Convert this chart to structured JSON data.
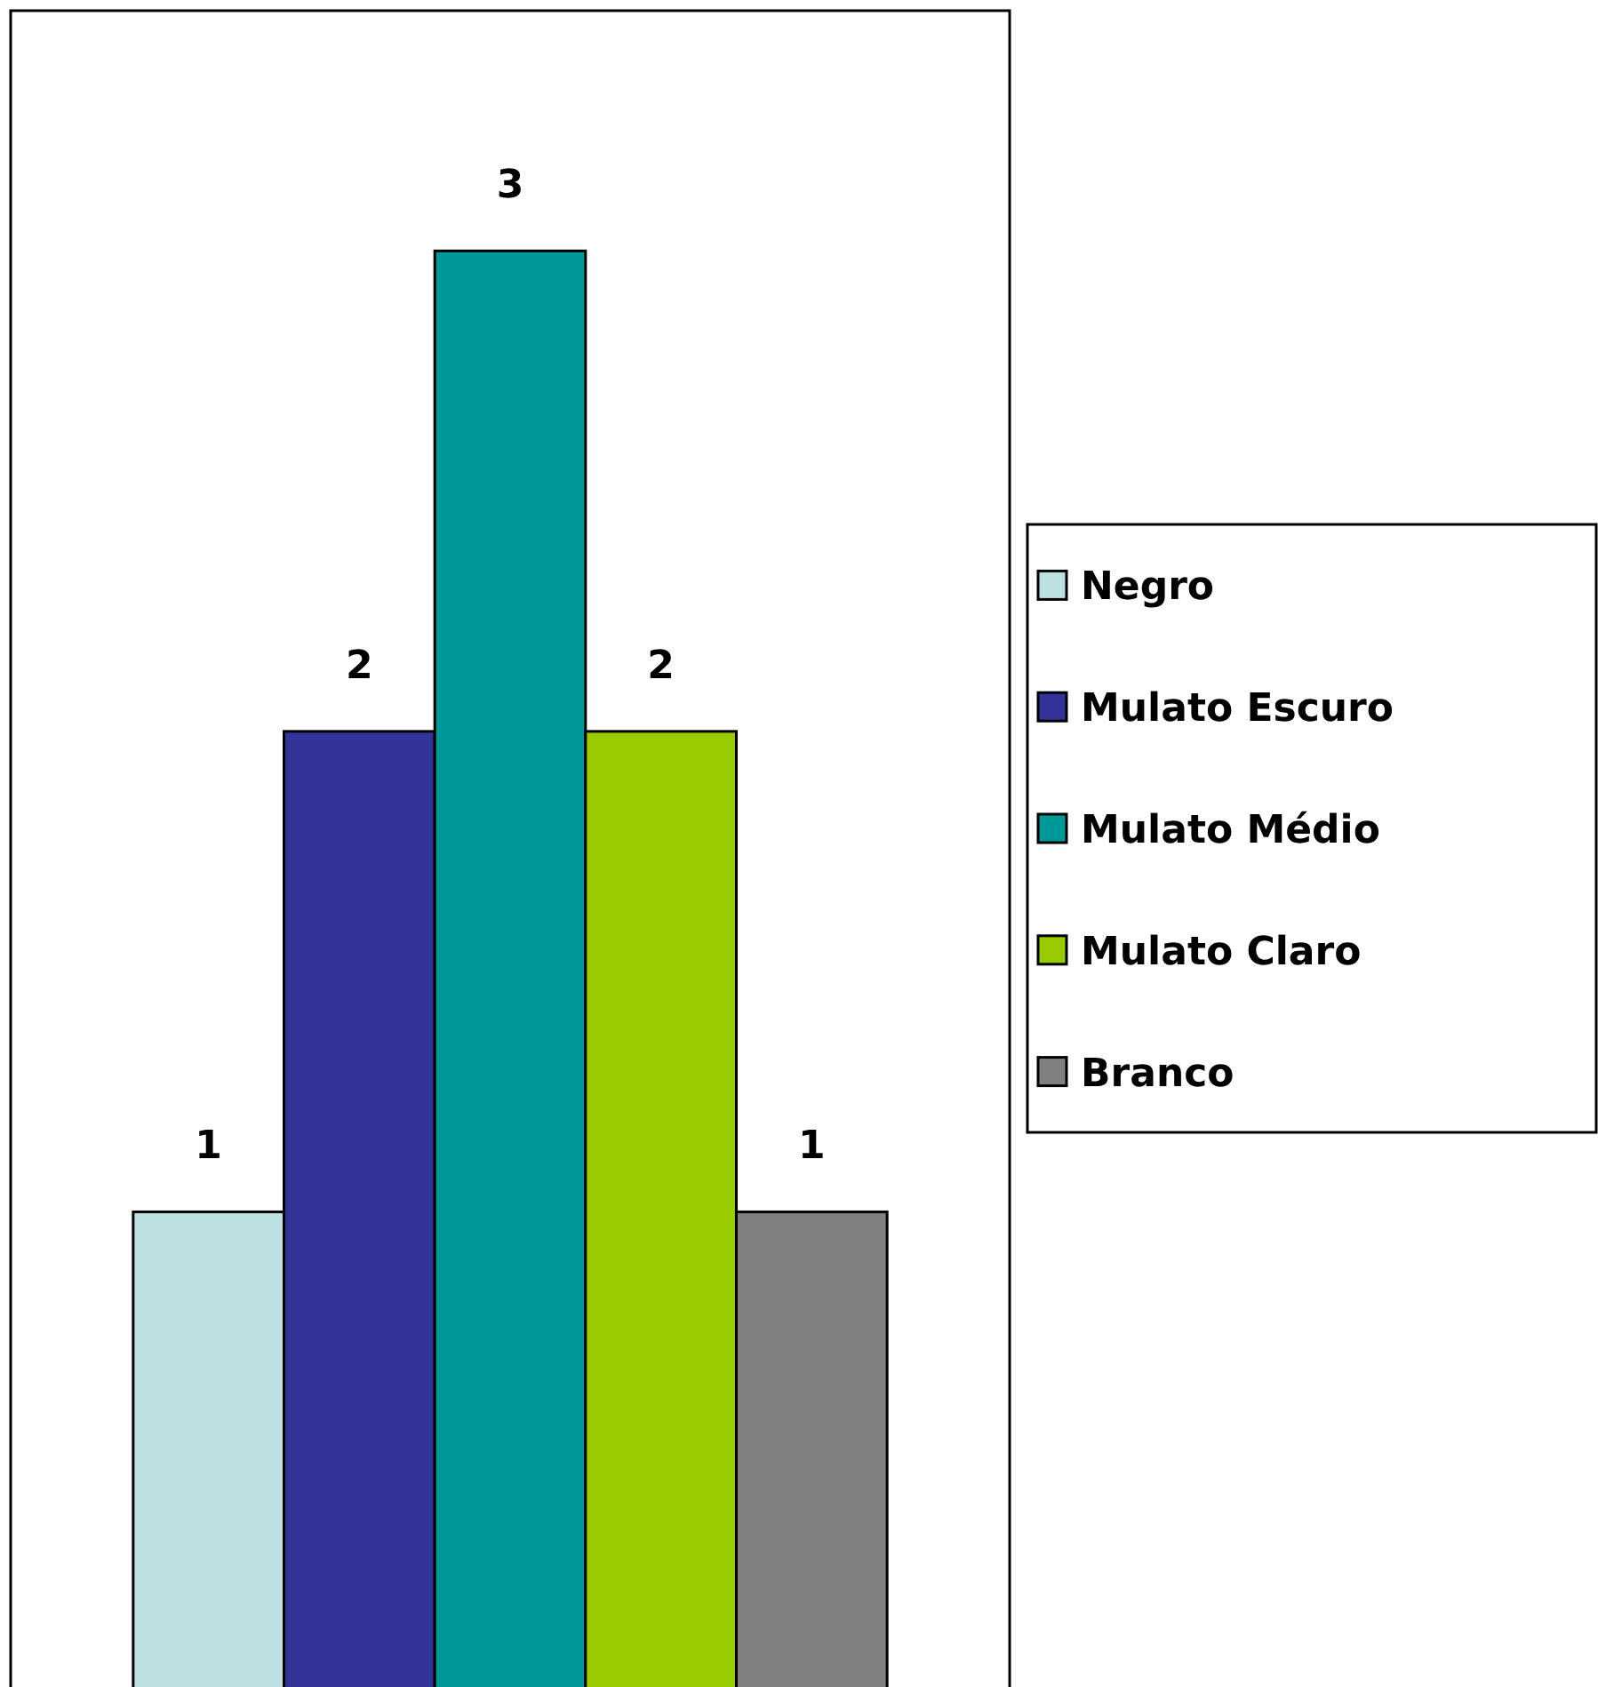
{
  "chart_data": {
    "type": "bar",
    "categories": [
      null
    ],
    "ylim": [
      0,
      3.5
    ],
    "data_labels": true,
    "legend": "right",
    "grid": false,
    "series": [
      {
        "name": "Negro",
        "color": "#bde0e3",
        "values": [
          1
        ]
      },
      {
        "name": "Mulato Escuro",
        "color": "#333399",
        "values": [
          2
        ]
      },
      {
        "name": "Mulato Médio",
        "color": "#009999",
        "values": [
          3
        ]
      },
      {
        "name": "Mulato Claro",
        "color": "#99cc00",
        "values": [
          2
        ]
      },
      {
        "name": "Branco",
        "color": "#808080",
        "values": [
          1
        ]
      }
    ]
  }
}
